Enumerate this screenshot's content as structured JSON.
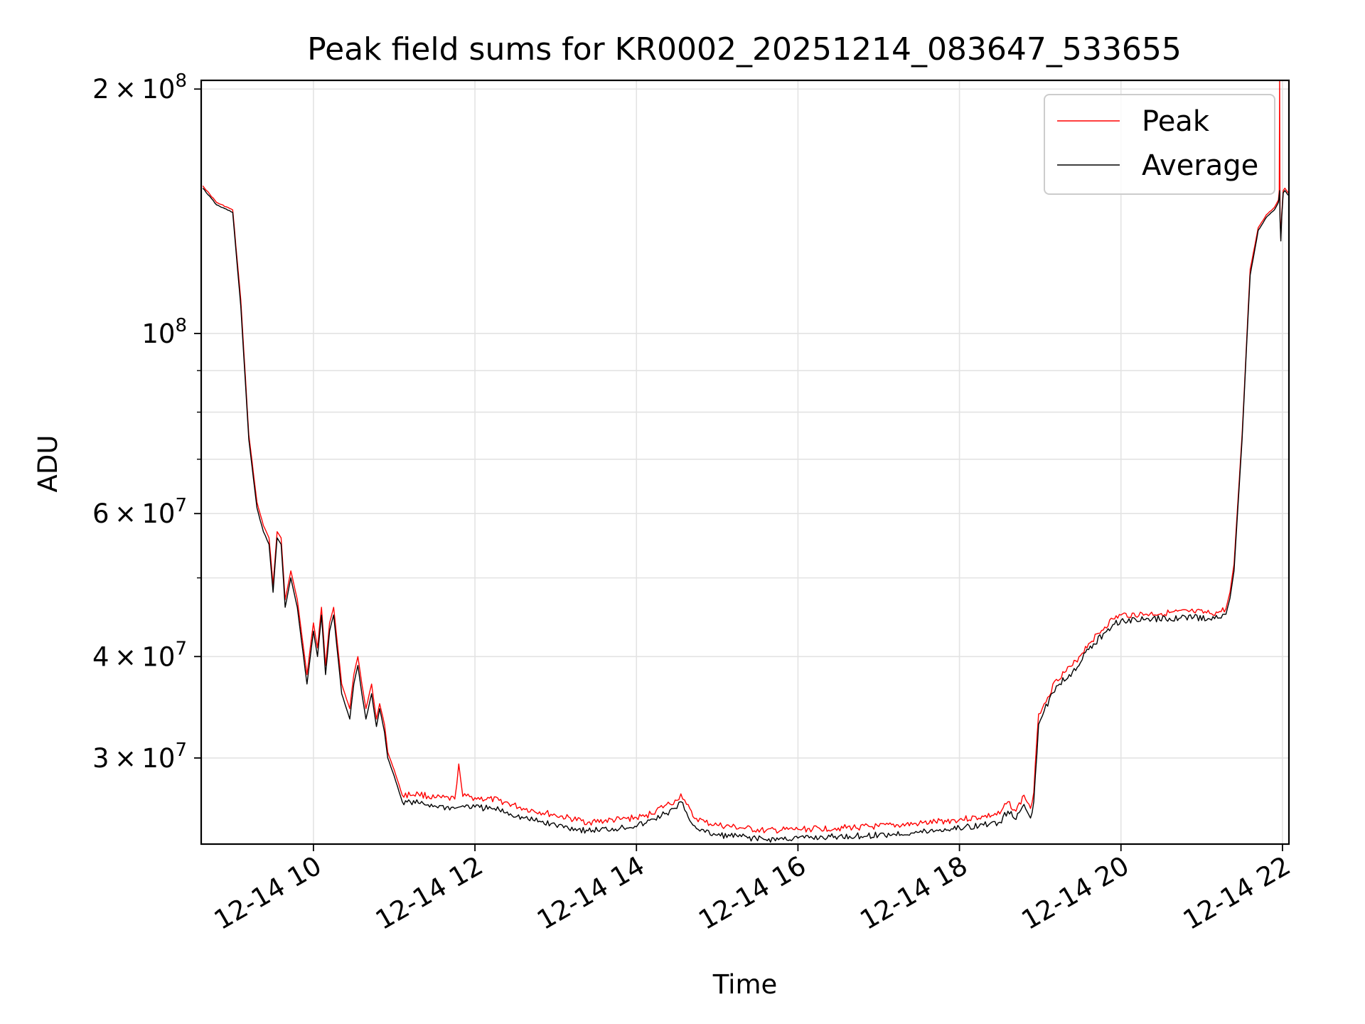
{
  "chart_data": {
    "type": "line",
    "title": "Peak field sums for KR0002_20251214_083647_533655",
    "xlabel": "Time",
    "ylabel": "ADU",
    "yscale": "log",
    "xlim": [
      8.61,
      22.08
    ],
    "ylim": [
      23500000,
      205000000
    ],
    "grid": true,
    "legend_position": "upper-right",
    "x_unit": "hours on 12-14",
    "x_ticks": [
      {
        "value": 10,
        "label": "12-14 10"
      },
      {
        "value": 12,
        "label": "12-14 12"
      },
      {
        "value": 14,
        "label": "12-14 14"
      },
      {
        "value": 16,
        "label": "12-14 16"
      },
      {
        "value": 18,
        "label": "12-14 18"
      },
      {
        "value": 20,
        "label": "12-14 20"
      },
      {
        "value": 22,
        "label": "12-14 22"
      }
    ],
    "y_major_ticks": [
      {
        "value": 30000000,
        "mantissa": "3",
        "exponent": "7"
      },
      {
        "value": 40000000,
        "mantissa": "4",
        "exponent": "7"
      },
      {
        "value": 60000000,
        "mantissa": "6",
        "exponent": "7"
      },
      {
        "value": 100000000,
        "mantissa": "",
        "exponent": "8"
      },
      {
        "value": 200000000,
        "mantissa": "2",
        "exponent": "8"
      }
    ],
    "y_minor_ticks": [
      50000000,
      70000000,
      80000000,
      90000000
    ],
    "tick_multiply_sign": "×",
    "tick_base": "10",
    "series": [
      {
        "name": "Peak",
        "color": "#ff0000",
        "x": [
          8.63,
          8.8,
          9.0,
          9.1,
          9.2,
          9.3,
          9.38,
          9.45,
          9.5,
          9.55,
          9.6,
          9.65,
          9.72,
          9.8,
          9.85,
          9.92,
          10.0,
          10.05,
          10.1,
          10.15,
          10.2,
          10.25,
          10.35,
          10.45,
          10.5,
          10.55,
          10.6,
          10.65,
          10.72,
          10.78,
          10.82,
          10.88,
          10.92,
          11.0,
          11.1,
          11.3,
          11.5,
          11.75,
          11.8,
          11.85,
          12.0,
          12.3,
          12.6,
          13.0,
          13.4,
          13.8,
          14.1,
          14.35,
          14.5,
          14.55,
          14.62,
          14.7,
          14.85,
          15.0,
          15.3,
          15.6,
          16.0,
          16.5,
          17.0,
          17.5,
          18.0,
          18.3,
          18.5,
          18.6,
          18.7,
          18.8,
          18.88,
          18.92,
          18.98,
          19.05,
          19.2,
          19.4,
          19.6,
          19.8,
          19.9,
          20.0,
          20.3,
          20.6,
          20.9,
          21.1,
          21.2,
          21.3,
          21.35,
          21.4,
          21.5,
          21.55,
          21.6,
          21.7,
          21.8,
          21.9,
          21.95,
          21.96,
          21.965,
          21.97,
          21.98,
          21.99,
          22.01,
          22.03,
          22.05,
          22.07
        ],
        "y": [
          152000000,
          145000000,
          142000000,
          110000000,
          75000000,
          62000000,
          58000000,
          56000000,
          49000000,
          57000000,
          56000000,
          47000000,
          51000000,
          47000000,
          43000000,
          38000000,
          44000000,
          41000000,
          46000000,
          39000000,
          44000000,
          46000000,
          37000000,
          34500000,
          38000000,
          40000000,
          37000000,
          34500000,
          37000000,
          33500000,
          35000000,
          33000000,
          30500000,
          29000000,
          27000000,
          27100000,
          26800000,
          26700000,
          29500000,
          26900000,
          26800000,
          26600000,
          26000000,
          25500000,
          25000000,
          25200000,
          25400000,
          26200000,
          26600000,
          27100000,
          26300000,
          25400000,
          25000000,
          24800000,
          24600000,
          24400000,
          24500000,
          24600000,
          24700000,
          24900000,
          25200000,
          25400000,
          25600000,
          26500000,
          25800000,
          27000000,
          26000000,
          27200000,
          34000000,
          35000000,
          37500000,
          39000000,
          41500000,
          43500000,
          44500000,
          45000000,
          45100000,
          45300000,
          45400000,
          45200000,
          45300000,
          45800000,
          48000000,
          52000000,
          75000000,
          95000000,
          120000000,
          135000000,
          140000000,
          143000000,
          146000000,
          150000000,
          205000000,
          140000000,
          131000000,
          140000000,
          150000000,
          151000000,
          150000000,
          149000000
        ]
      },
      {
        "name": "Average",
        "color": "#000000",
        "x": [
          8.63,
          8.8,
          9.0,
          9.1,
          9.2,
          9.3,
          9.38,
          9.45,
          9.5,
          9.55,
          9.6,
          9.65,
          9.72,
          9.8,
          9.85,
          9.92,
          10.0,
          10.05,
          10.1,
          10.15,
          10.2,
          10.25,
          10.35,
          10.45,
          10.5,
          10.55,
          10.6,
          10.65,
          10.72,
          10.78,
          10.82,
          10.88,
          10.92,
          11.0,
          11.1,
          11.3,
          11.5,
          11.75,
          11.8,
          11.85,
          12.0,
          12.3,
          12.6,
          13.0,
          13.4,
          13.8,
          14.1,
          14.35,
          14.5,
          14.55,
          14.62,
          14.7,
          14.85,
          15.0,
          15.3,
          15.6,
          16.0,
          16.5,
          17.0,
          17.5,
          18.0,
          18.3,
          18.5,
          18.6,
          18.7,
          18.8,
          18.88,
          18.92,
          18.98,
          19.05,
          19.2,
          19.4,
          19.6,
          19.8,
          19.9,
          20.0,
          20.3,
          20.6,
          20.9,
          21.1,
          21.2,
          21.3,
          21.35,
          21.4,
          21.5,
          21.55,
          21.6,
          21.7,
          21.8,
          21.9,
          21.95,
          21.96,
          21.965,
          21.97,
          21.98,
          21.99,
          22.01,
          22.03,
          22.05,
          22.07
        ],
        "y": [
          151000000,
          144000000,
          141000000,
          108000000,
          74000000,
          61000000,
          57000000,
          55000000,
          48000000,
          56000000,
          55000000,
          46000000,
          50000000,
          46000000,
          42000000,
          37000000,
          43000000,
          40000000,
          45000000,
          38000000,
          43000000,
          45000000,
          36000000,
          33500000,
          37000000,
          39000000,
          36000000,
          33500000,
          36000000,
          32800000,
          34500000,
          32300000,
          30000000,
          28500000,
          26500000,
          26400000,
          26200000,
          26000000,
          26100000,
          26200000,
          26100000,
          25900000,
          25300000,
          24800000,
          24400000,
          24600000,
          24900000,
          25600000,
          26000000,
          26500000,
          25700000,
          24800000,
          24300000,
          24100000,
          24000000,
          23800000,
          23900000,
          24000000,
          24100000,
          24300000,
          24600000,
          24800000,
          25000000,
          25800000,
          25200000,
          26300000,
          25300000,
          26500000,
          33000000,
          34300000,
          36800000,
          38300000,
          40800000,
          42800000,
          43800000,
          44300000,
          44400000,
          44600000,
          44700000,
          44500000,
          44600000,
          45100000,
          47200000,
          51000000,
          74000000,
          94000000,
          118000000,
          134000000,
          139000000,
          142000000,
          145000000,
          148000000,
          150000000,
          138000000,
          130000000,
          139000000,
          149000000,
          150000000,
          149000000,
          148000000
        ]
      }
    ]
  }
}
